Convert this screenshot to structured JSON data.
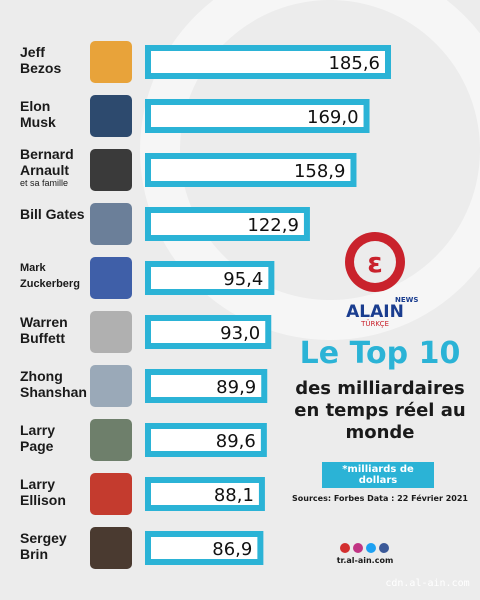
{
  "chart_data": {
    "type": "bar",
    "categories": [
      "Jeff Bezos",
      "Elon Musk",
      "Bernard Arnault",
      "Bill Gates",
      "Mark Zuckerberg",
      "Warren Buffett",
      "Zhong Shanshan",
      "Larry Page",
      "Larry Ellison",
      "Sergey Brin"
    ],
    "category_notes": [
      null,
      null,
      "et sa famille",
      null,
      null,
      null,
      null,
      null,
      null,
      null
    ],
    "values": [
      185.6,
      169.0,
      158.9,
      122.9,
      95.4,
      93.0,
      89.9,
      89.6,
      88.1,
      86.9
    ],
    "value_labels": [
      "185,6",
      "169,0",
      "158,9",
      "122,9",
      "95,4",
      "93,0",
      "89,9",
      "89,6",
      "88,1",
      "86,9"
    ],
    "color": "#2bb3d6"
  },
  "brand": {
    "news": "NEWS",
    "name": "ALAIN",
    "edition": "TÜRKÇE"
  },
  "title": "Le Top 10",
  "subtitle": "des milliardaires en temps réel au monde",
  "unit_note": "*milliards de dollars",
  "source": "Sources: Forbes Data : 22  Février 2021",
  "website": "tr.al-ain.com",
  "watermark": "cdn.al-ain.com"
}
